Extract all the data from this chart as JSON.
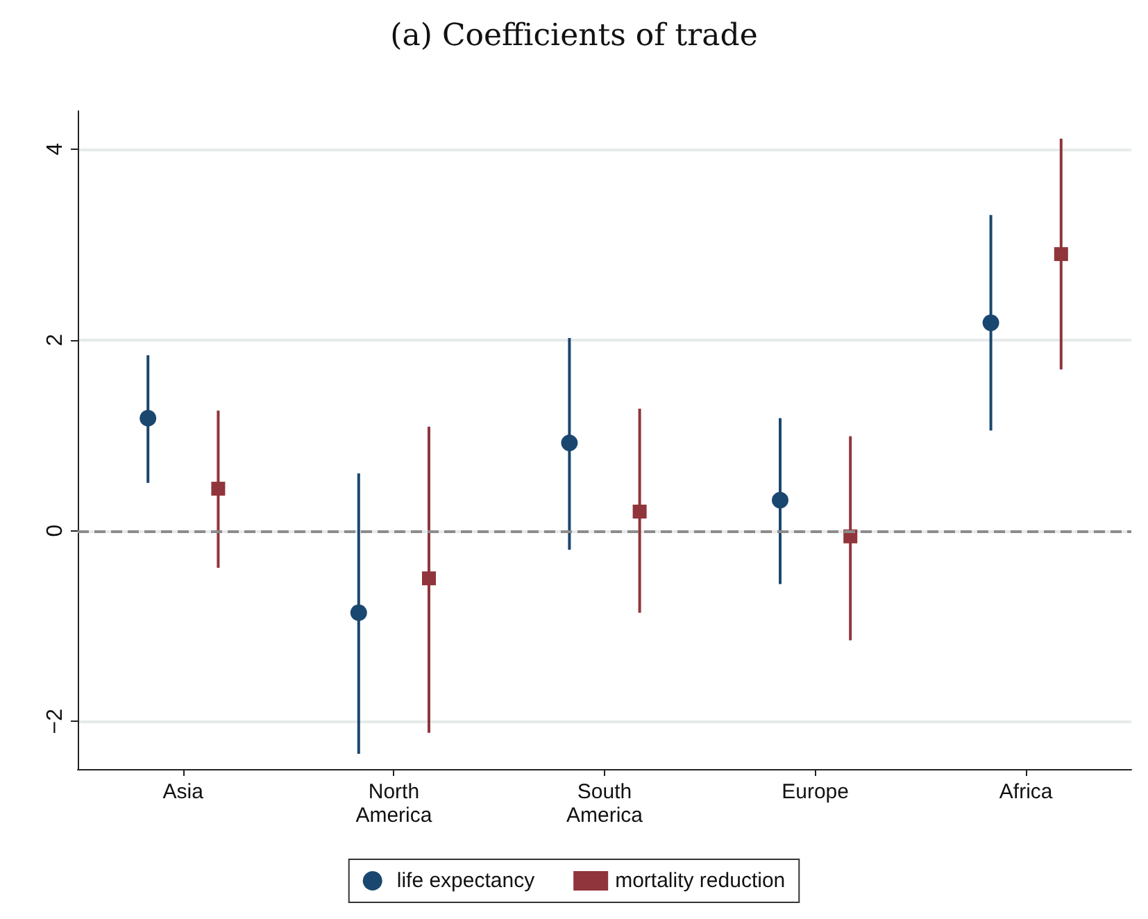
{
  "chart_data": {
    "type": "scatter",
    "title": "(a) Coefficients of trade",
    "categories": [
      "Asia",
      "North\nAmerica",
      "South\nAmerica",
      "Europe",
      "Africa"
    ],
    "series": [
      {
        "name": "life expectancy",
        "color": "#1a476f",
        "marker": "circle",
        "values": [
          1.18,
          -0.86,
          0.92,
          0.32,
          2.18
        ],
        "errors": [
          [
            0.5,
            1.84
          ],
          [
            -2.34,
            0.6
          ],
          [
            -0.2,
            2.02
          ],
          [
            -0.56,
            1.18
          ],
          [
            1.05,
            3.31
          ]
        ]
      },
      {
        "name": "mortality reduction",
        "color": "#90353b",
        "marker": "square",
        "values": [
          0.44,
          -0.5,
          0.2,
          -0.06,
          2.9
        ],
        "errors": [
          [
            -0.39,
            1.26
          ],
          [
            -2.12,
            1.09
          ],
          [
            -0.86,
            1.28
          ],
          [
            -1.15,
            0.99
          ],
          [
            1.69,
            4.11
          ]
        ]
      }
    ],
    "ylim": [
      -2.5,
      4.4
    ],
    "yticks": [
      -2,
      0,
      2,
      4
    ],
    "grid": "y",
    "legend": "bottom",
    "ref_lines": [
      {
        "axis": "y",
        "value": 0,
        "color": "#8c8c8c",
        "line_style": "dashed"
      }
    ]
  }
}
